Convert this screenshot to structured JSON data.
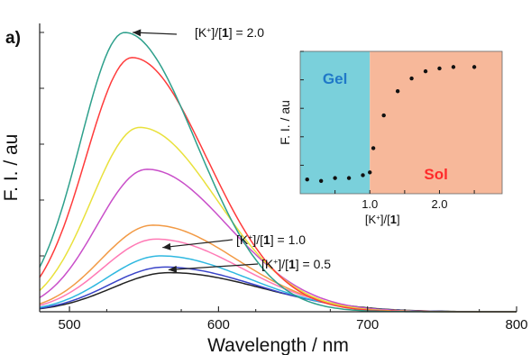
{
  "panel_label": "a)",
  "chart_data": [
    {
      "type": "line",
      "xlabel": "Wavelength / nm",
      "ylabel": "F. I. / au",
      "xlim": [
        480,
        800
      ],
      "ylim": [
        0,
        100
      ],
      "x_ticks": [
        500,
        600,
        700,
        800
      ],
      "grid": false,
      "series": [
        {
          "color": "#2ea08c",
          "peak_x": 537,
          "peak_y": 100,
          "width": 48
        },
        {
          "color": "#ff3b3b",
          "peak_x": 542,
          "peak_y": 91,
          "width": 50
        },
        {
          "color": "#e9e13c",
          "peak_x": 547,
          "peak_y": 66,
          "width": 52
        },
        {
          "color": "#c94fc9",
          "peak_x": 552,
          "peak_y": 51,
          "width": 54
        },
        {
          "color": "#f29a45",
          "peak_x": 556,
          "peak_y": 31,
          "width": 56
        },
        {
          "color": "#ff7ab5",
          "peak_x": 558,
          "peak_y": 26,
          "width": 57
        },
        {
          "color": "#2fb8e0",
          "peak_x": 561,
          "peak_y": 20,
          "width": 58
        },
        {
          "color": "#3a44c8",
          "peak_x": 564,
          "peak_y": 16,
          "width": 60
        },
        {
          "color": "#222222",
          "peak_x": 567,
          "peak_y": 14,
          "width": 62
        }
      ],
      "annotations": [
        {
          "text_pre": "[K",
          "sup": "+",
          "mid": "]/[",
          "bold": "1",
          "post": "] = 2.0",
          "target_x": 540,
          "target_y": 100
        },
        {
          "text_pre": "[K",
          "sup": "+",
          "mid": "]/[",
          "bold": "1",
          "post": "] = 1.0",
          "target_x": 560,
          "target_y": 23
        },
        {
          "text_pre": "[K",
          "sup": "+",
          "mid": "]/[",
          "bold": "1",
          "post": "] = 0.5",
          "target_x": 564,
          "target_y": 15
        }
      ]
    },
    {
      "type": "scatter",
      "xlabel_pre": "[K",
      "xlabel_sup": "+",
      "xlabel_mid": "]/[",
      "xlabel_bold": "1",
      "xlabel_post": "]",
      "ylabel": "F. I. / au",
      "xlim": [
        0,
        2.9
      ],
      "ylim": [
        0,
        100
      ],
      "x_ticks": [
        1.0,
        2.0
      ],
      "x_tick_labels": [
        "1.0",
        "2.0"
      ],
      "regions": [
        {
          "label": "Gel",
          "x_from": 0,
          "x_to": 1.0,
          "fill": "#7ad0db",
          "text_color": "#1f78c8"
        },
        {
          "label": "Sol",
          "x_from": 1.0,
          "x_to": 2.9,
          "fill": "#f7b89a",
          "text_color": "#ff2a2a"
        }
      ],
      "x": [
        0.1,
        0.3,
        0.5,
        0.7,
        0.9,
        1.0,
        1.05,
        1.2,
        1.4,
        1.6,
        1.8,
        2.0,
        2.2,
        2.5
      ],
      "y": [
        10,
        9,
        11,
        11,
        13,
        15,
        32,
        55,
        72,
        81,
        86,
        88,
        89,
        89
      ]
    }
  ]
}
